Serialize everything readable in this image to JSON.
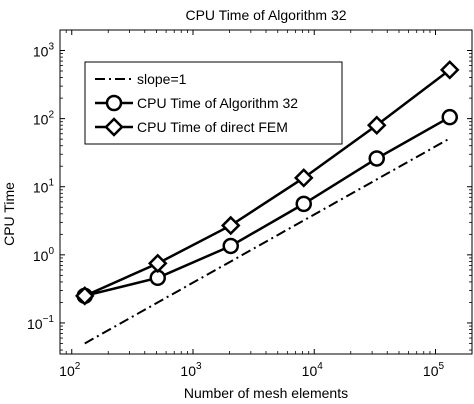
{
  "chart_data": {
    "type": "line",
    "title": "CPU Time of Algorithm 32",
    "xlabel": "Number of mesh elements",
    "ylabel": "CPU Time",
    "xscale": "log",
    "yscale": "log",
    "xlim": [
      80,
      200000
    ],
    "ylim": [
      0.035,
      2000
    ],
    "xticks": [
      {
        "value": 100,
        "mantissa": "10",
        "exp": "2"
      },
      {
        "value": 1000,
        "mantissa": "10",
        "exp": "3"
      },
      {
        "value": 10000,
        "mantissa": "10",
        "exp": "4"
      },
      {
        "value": 100000,
        "mantissa": "10",
        "exp": "5"
      }
    ],
    "yticks": [
      {
        "value": 0.1,
        "mantissa": "10",
        "exp": "−1"
      },
      {
        "value": 1,
        "mantissa": "10",
        "exp": "0"
      },
      {
        "value": 10,
        "mantissa": "10",
        "exp": "1"
      },
      {
        "value": 100,
        "mantissa": "10",
        "exp": "2"
      },
      {
        "value": 1000,
        "mantissa": "10",
        "exp": "3"
      }
    ],
    "grid": false,
    "legend_position": "top-left",
    "series": [
      {
        "name": "slope=1",
        "style": "dashdot",
        "marker": "none",
        "x": [
          128,
          131072
        ],
        "y": [
          0.05,
          51.2
        ]
      },
      {
        "name": "CPU Time of Algorithm 32",
        "style": "solid",
        "marker": "circle",
        "x": [
          128,
          512,
          2048,
          8192,
          32768,
          131072
        ],
        "y": [
          0.25,
          0.46,
          1.35,
          5.6,
          26,
          105
        ]
      },
      {
        "name": "CPU Time of direct FEM",
        "style": "solid",
        "marker": "diamond",
        "x": [
          128,
          512,
          2048,
          8192,
          32768,
          131072
        ],
        "y": [
          0.25,
          0.75,
          2.7,
          13.5,
          80,
          520
        ]
      }
    ]
  },
  "colors": {
    "line": "#000000",
    "background": "#ffffff"
  }
}
